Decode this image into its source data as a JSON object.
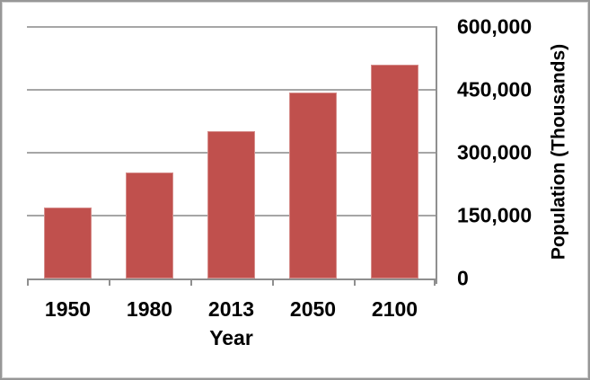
{
  "chart_data": {
    "type": "bar",
    "title": "",
    "categories": [
      "1950",
      "1980",
      "2013",
      "2050",
      "2100"
    ],
    "values": [
      170000,
      253000,
      352000,
      444000,
      509000
    ],
    "xlabel": "Year",
    "ylabel": "Population (Thousands)",
    "ylim": [
      0,
      600000
    ],
    "ytick_step": 150000,
    "ytick_labels": [
      "0",
      "150,000",
      "300,000",
      "450,000",
      "600,000"
    ],
    "grid": true,
    "legend_position": "none",
    "y_axis_side": "right",
    "colors": {
      "bar": "#C0504D",
      "gridline": "#A6A6A6",
      "axis": "#8F8F8F",
      "text": "#000000",
      "background": "#FFFFFF",
      "frame_border": "#979797"
    }
  }
}
